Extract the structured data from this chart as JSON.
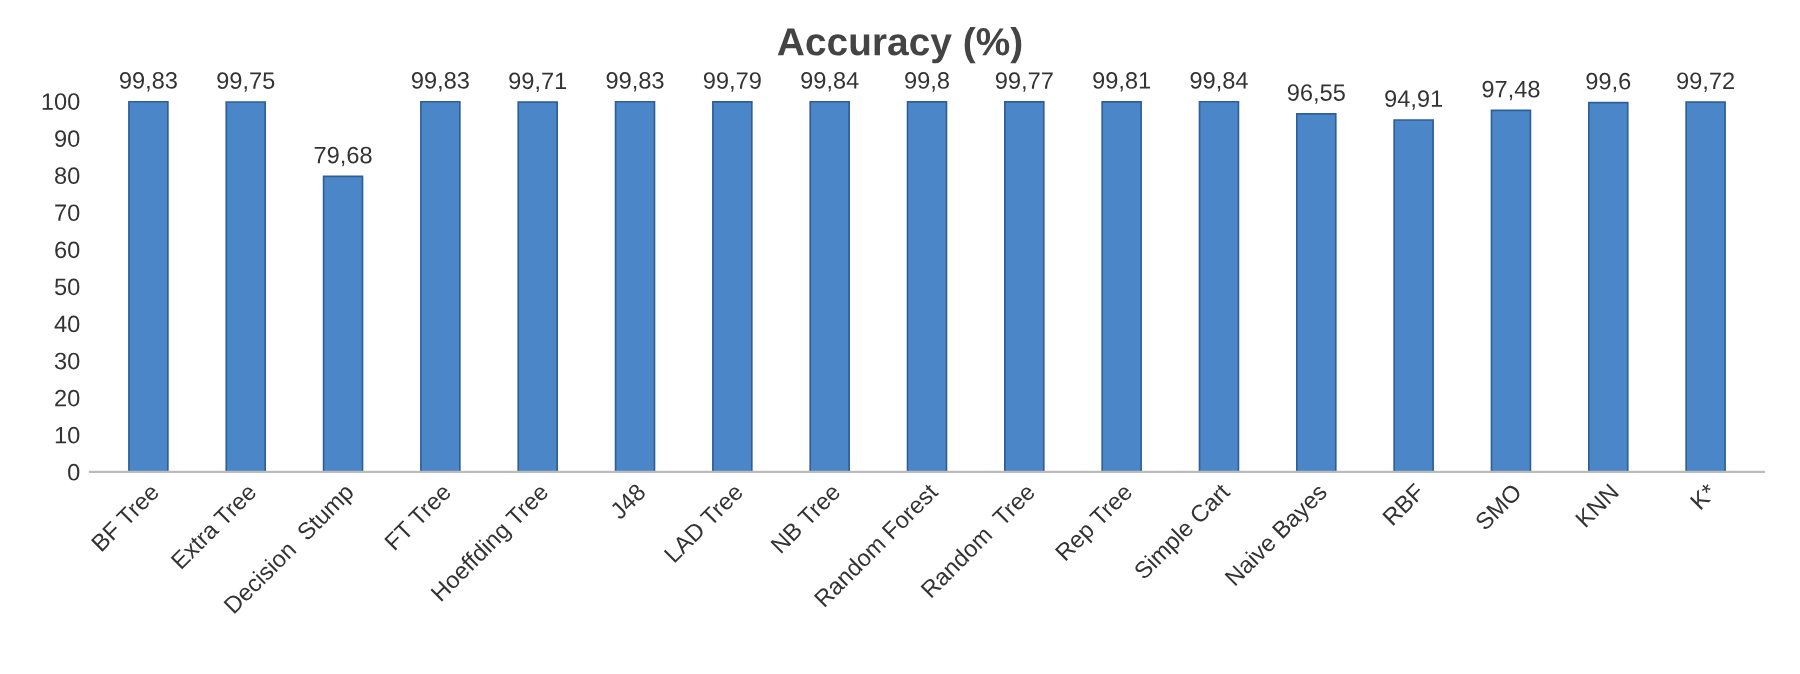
{
  "chart_data": {
    "type": "bar",
    "title": "Accuracy (%)",
    "categories": [
      "BF Tree",
      "Extra Tree",
      "Decision  Stump",
      "FT Tree",
      "Hoeffding Tree",
      "J48",
      "LAD Tree",
      "NB Tree",
      "Random Forest",
      "Random  Tree",
      "Rep Tree",
      "Simple Cart",
      "Naive Bayes",
      "RBF",
      "SMO",
      "KNN",
      "K*"
    ],
    "values": [
      99.83,
      99.75,
      79.68,
      99.83,
      99.71,
      99.83,
      99.79,
      99.84,
      99.8,
      99.77,
      99.81,
      99.84,
      96.55,
      94.91,
      97.48,
      99.6,
      99.72
    ],
    "value_labels": [
      "99,83",
      "99,75",
      "79,68",
      "99,83",
      "99,71",
      "99,83",
      "99,79",
      "99,84",
      "99,8",
      "99,77",
      "99,81",
      "99,84",
      "96,55",
      "94,91",
      "97,48",
      "99,6",
      "99,72"
    ],
    "color": "#4a86c8",
    "ylim": [
      0,
      100
    ],
    "yticks": [
      0,
      10,
      20,
      30,
      40,
      50,
      60,
      70,
      80,
      90,
      100
    ],
    "grid": false
  }
}
